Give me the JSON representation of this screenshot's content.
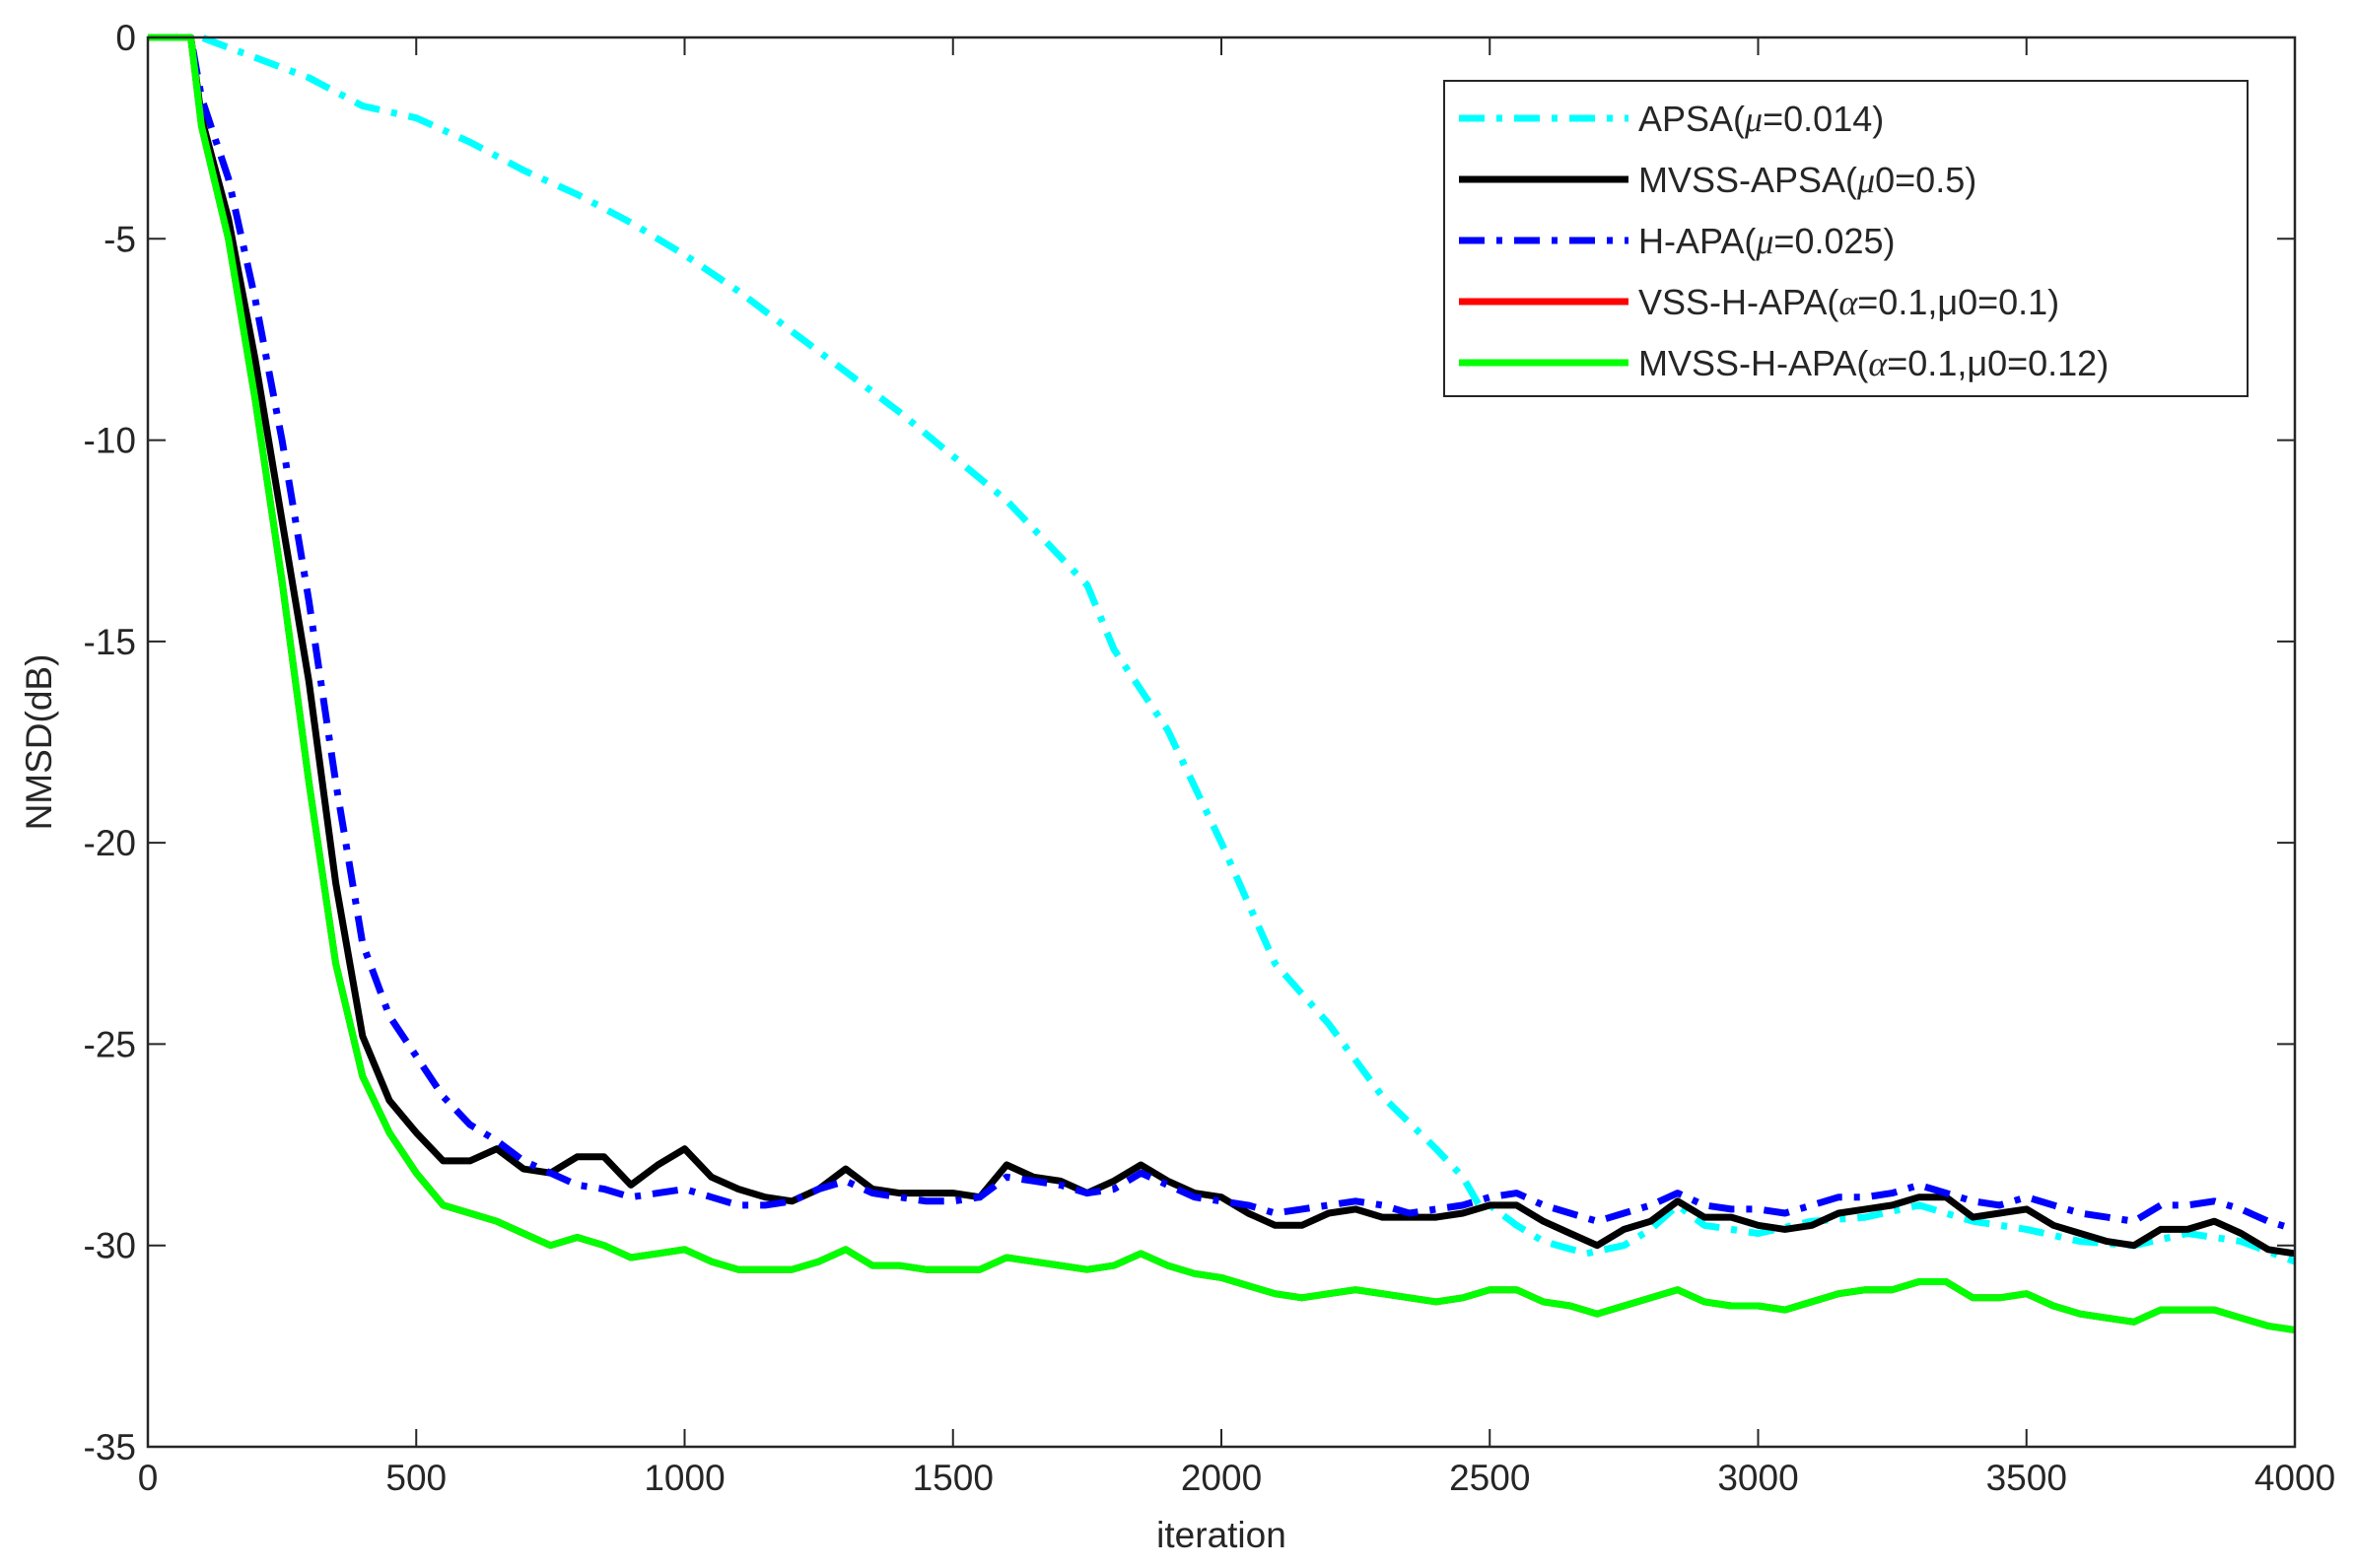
{
  "chart_data": {
    "type": "line",
    "title": "",
    "xlabel": "iteration",
    "ylabel": "NMSD(dB)",
    "xlim": [
      0,
      4000
    ],
    "ylim": [
      -35,
      0
    ],
    "xticks": [
      0,
      500,
      1000,
      1500,
      2000,
      2500,
      3000,
      3500,
      4000
    ],
    "yticks": [
      0,
      -5,
      -10,
      -15,
      -20,
      -25,
      -30,
      -35
    ],
    "xtick_labels": [
      "0",
      "500",
      "1000",
      "1500",
      "2000",
      "2500",
      "3000",
      "3500",
      "4000"
    ],
    "ytick_labels": [
      "0",
      "-5",
      "-10",
      "-15",
      "-20",
      "-25",
      "-30",
      "-35"
    ],
    "grid": false,
    "legend_position": "top-right",
    "series": [
      {
        "name": "APSA(μ=0.014)",
        "legend_prefix": "APSA(",
        "legend_greek": "μ",
        "legend_suffix": "=0.014)",
        "color": "#00FFFF",
        "dash": "dash-dot",
        "x": [
          0,
          70,
          100,
          200,
          300,
          400,
          500,
          600,
          700,
          800,
          900,
          1000,
          1100,
          1200,
          1300,
          1400,
          1500,
          1600,
          1700,
          1750,
          1800,
          1900,
          2000,
          2100,
          2200,
          2300,
          2400,
          2450,
          2480,
          2500,
          2550,
          2600,
          2680,
          2750,
          2800,
          2850,
          2900,
          3000,
          3100,
          3200,
          3300,
          3400,
          3500,
          3600,
          3700,
          3800,
          3900,
          4000
        ],
        "y": [
          0,
          0,
          0,
          -0.5,
          -1.0,
          -1.7,
          -2.0,
          -2.6,
          -3.3,
          -3.9,
          -4.6,
          -5.4,
          -6.3,
          -7.3,
          -8.3,
          -9.3,
          -10.4,
          -11.5,
          -12.9,
          -13.6,
          -15.2,
          -17.2,
          -20.0,
          -23.0,
          -24.5,
          -26.3,
          -27.6,
          -28.3,
          -29.0,
          -29.0,
          -29.5,
          -29.9,
          -30.2,
          -30.0,
          -29.6,
          -29.0,
          -29.5,
          -29.7,
          -29.4,
          -29.3,
          -29.0,
          -29.4,
          -29.6,
          -29.9,
          -30.0,
          -29.7,
          -29.9,
          -30.4
        ]
      },
      {
        "name": "MVSS-APSA(μ0=0.5)",
        "legend_prefix": "MVSS-APSA(",
        "legend_greek": "μ",
        "legend_suffix": "0=0.5)",
        "color": "#000000",
        "dash": "solid",
        "x": [
          0,
          70,
          80,
          100,
          150,
          200,
          250,
          300,
          350,
          400,
          450,
          500,
          550,
          600,
          650,
          700,
          750,
          800,
          850,
          900,
          950,
          1000,
          1050,
          1100,
          1150,
          1200,
          1250,
          1300,
          1350,
          1400,
          1450,
          1500,
          1550,
          1600,
          1650,
          1700,
          1750,
          1800,
          1850,
          1900,
          1950,
          2000,
          2050,
          2100,
          2150,
          2200,
          2250,
          2300,
          2350,
          2400,
          2450,
          2500,
          2550,
          2600,
          2650,
          2700,
          2750,
          2800,
          2850,
          2900,
          2950,
          3000,
          3050,
          3100,
          3150,
          3200,
          3250,
          3300,
          3350,
          3400,
          3450,
          3500,
          3550,
          3600,
          3650,
          3700,
          3750,
          3800,
          3850,
          3900,
          3950,
          4000
        ],
        "y": [
          0,
          0,
          0,
          -2.0,
          -4.5,
          -8.0,
          -12.0,
          -16.0,
          -21.0,
          -24.8,
          -26.4,
          -27.2,
          -27.9,
          -27.9,
          -27.6,
          -28.1,
          -28.2,
          -27.8,
          -27.8,
          -28.5,
          -28.0,
          -27.6,
          -28.3,
          -28.6,
          -28.8,
          -28.9,
          -28.6,
          -28.1,
          -28.6,
          -28.7,
          -28.7,
          -28.7,
          -28.8,
          -28.0,
          -28.3,
          -28.4,
          -28.7,
          -28.4,
          -28.0,
          -28.4,
          -28.7,
          -28.8,
          -29.2,
          -29.5,
          -29.5,
          -29.2,
          -29.1,
          -29.3,
          -29.3,
          -29.3,
          -29.2,
          -29.0,
          -29.0,
          -29.4,
          -29.7,
          -30.0,
          -29.6,
          -29.4,
          -28.9,
          -29.3,
          -29.3,
          -29.5,
          -29.6,
          -29.5,
          -29.2,
          -29.1,
          -29.0,
          -28.8,
          -28.8,
          -29.3,
          -29.2,
          -29.1,
          -29.5,
          -29.7,
          -29.9,
          -30.0,
          -29.6,
          -29.6,
          -29.4,
          -29.7,
          -30.1,
          -30.2
        ]
      },
      {
        "name": "H-APA(μ=0.025)",
        "legend_prefix": "H-APA(",
        "legend_greek": "μ",
        "legend_suffix": "=0.025)",
        "color": "#0000FF",
        "dash": "dash-dot",
        "x": [
          0,
          70,
          80,
          100,
          150,
          200,
          250,
          300,
          350,
          400,
          450,
          500,
          550,
          600,
          650,
          700,
          750,
          800,
          850,
          900,
          950,
          1000,
          1050,
          1100,
          1150,
          1200,
          1250,
          1300,
          1350,
          1400,
          1450,
          1500,
          1550,
          1600,
          1650,
          1700,
          1750,
          1800,
          1850,
          1900,
          1950,
          2000,
          2050,
          2100,
          2150,
          2200,
          2250,
          2300,
          2350,
          2400,
          2450,
          2500,
          2550,
          2600,
          2650,
          2700,
          2750,
          2800,
          2850,
          2900,
          2950,
          3000,
          3050,
          3100,
          3150,
          3200,
          3250,
          3300,
          3350,
          3400,
          3450,
          3500,
          3550,
          3600,
          3650,
          3700,
          3750,
          3800,
          3850,
          3900,
          3950,
          4000
        ],
        "y": [
          0,
          0,
          0,
          -1.5,
          -3.5,
          -6.5,
          -10.0,
          -14.0,
          -18.5,
          -22.5,
          -24.3,
          -25.3,
          -26.3,
          -27.0,
          -27.4,
          -27.9,
          -28.2,
          -28.5,
          -28.6,
          -28.8,
          -28.7,
          -28.6,
          -28.8,
          -29.0,
          -29.0,
          -28.9,
          -28.6,
          -28.4,
          -28.7,
          -28.8,
          -28.9,
          -28.9,
          -28.8,
          -28.3,
          -28.4,
          -28.5,
          -28.7,
          -28.6,
          -28.2,
          -28.5,
          -28.8,
          -28.9,
          -29.0,
          -29.2,
          -29.1,
          -29.0,
          -28.9,
          -29.0,
          -29.2,
          -29.1,
          -29.0,
          -28.8,
          -28.7,
          -29.0,
          -29.2,
          -29.4,
          -29.2,
          -29.0,
          -28.7,
          -29.0,
          -29.1,
          -29.1,
          -29.2,
          -29.0,
          -28.8,
          -28.8,
          -28.7,
          -28.5,
          -28.7,
          -28.9,
          -29.0,
          -28.8,
          -29.0,
          -29.2,
          -29.3,
          -29.4,
          -29.0,
          -29.0,
          -28.9,
          -29.1,
          -29.4,
          -29.6
        ]
      },
      {
        "name": "VSS-H-APA(α=0.1,μ0=0.1)",
        "legend_prefix": "VSS-H-APA(",
        "legend_greek": "α",
        "legend_suffix": "=0.1,μ0=0.1)",
        "color": "#FF0000",
        "dash": "solid",
        "x": [
          0,
          70,
          80,
          100,
          150,
          200,
          250,
          300,
          350,
          400,
          450,
          500,
          550,
          600,
          650,
          700,
          750,
          800,
          850,
          900,
          950,
          1000,
          1050,
          1100,
          1150,
          1200,
          1250,
          1300,
          1350,
          1400,
          1450,
          1500,
          1550,
          1600,
          1650,
          1700,
          1750,
          1800,
          1850,
          1900,
          1950,
          2000,
          2050,
          2100,
          2150,
          2200,
          2250,
          2300,
          2350,
          2400,
          2450,
          2500,
          2550,
          2600,
          2650,
          2700,
          2750,
          2800,
          2850,
          2900,
          2950,
          3000,
          3050,
          3100,
          3150,
          3200,
          3250,
          3300,
          3350,
          3400,
          3450,
          3500,
          3550,
          3600,
          3650,
          3700,
          3750,
          3800,
          3850,
          3900,
          3950,
          4000
        ],
        "y": [
          0,
          0,
          0,
          -2.2,
          -5.0,
          -9.0,
          -13.5,
          -18.5,
          -23.0,
          -25.8,
          -27.2,
          -28.2,
          -29.0,
          -29.2,
          -29.4,
          -29.7,
          -30.0,
          -29.8,
          -30.0,
          -30.3,
          -30.2,
          -30.1,
          -30.4,
          -30.6,
          -30.6,
          -30.6,
          -30.4,
          -30.1,
          -30.5,
          -30.5,
          -30.6,
          -30.6,
          -30.6,
          -30.3,
          -30.4,
          -30.5,
          -30.6,
          -30.5,
          -30.2,
          -30.5,
          -30.7,
          -30.8,
          -31.0,
          -31.2,
          -31.3,
          -31.2,
          -31.1,
          -31.2,
          -31.3,
          -31.4,
          -31.3,
          -31.1,
          -31.1,
          -31.4,
          -31.5,
          -31.7,
          -31.5,
          -31.3,
          -31.1,
          -31.4,
          -31.5,
          -31.5,
          -31.6,
          -31.4,
          -31.2,
          -31.1,
          -31.1,
          -30.9,
          -30.9,
          -31.3,
          -31.3,
          -31.2,
          -31.5,
          -31.7,
          -31.8,
          -31.9,
          -31.6,
          -31.6,
          -31.6,
          -31.8,
          -32.0,
          -32.1
        ]
      },
      {
        "name": "MVSS-H-APA(α=0.1,μ0=0.12)",
        "legend_prefix": "MVSS-H-APA(",
        "legend_greek": "α",
        "legend_suffix": "=0.1,μ0=0.12)",
        "color": "#00FF00",
        "dash": "solid",
        "x": [
          0,
          70,
          80,
          100,
          150,
          200,
          250,
          300,
          350,
          400,
          450,
          500,
          550,
          600,
          650,
          700,
          750,
          800,
          850,
          900,
          950,
          1000,
          1050,
          1100,
          1150,
          1200,
          1250,
          1300,
          1350,
          1400,
          1450,
          1500,
          1550,
          1600,
          1650,
          1700,
          1750,
          1800,
          1850,
          1900,
          1950,
          2000,
          2050,
          2100,
          2150,
          2200,
          2250,
          2300,
          2350,
          2400,
          2450,
          2500,
          2550,
          2600,
          2650,
          2700,
          2750,
          2800,
          2850,
          2900,
          2950,
          3000,
          3050,
          3100,
          3150,
          3200,
          3250,
          3300,
          3350,
          3400,
          3450,
          3500,
          3550,
          3600,
          3650,
          3700,
          3750,
          3800,
          3850,
          3900,
          3950,
          4000
        ],
        "y": [
          0,
          0,
          0,
          -2.2,
          -5.0,
          -9.0,
          -13.5,
          -18.5,
          -23.0,
          -25.8,
          -27.2,
          -28.2,
          -29.0,
          -29.2,
          -29.4,
          -29.7,
          -30.0,
          -29.8,
          -30.0,
          -30.3,
          -30.2,
          -30.1,
          -30.4,
          -30.6,
          -30.6,
          -30.6,
          -30.4,
          -30.1,
          -30.5,
          -30.5,
          -30.6,
          -30.6,
          -30.6,
          -30.3,
          -30.4,
          -30.5,
          -30.6,
          -30.5,
          -30.2,
          -30.5,
          -30.7,
          -30.8,
          -31.0,
          -31.2,
          -31.3,
          -31.2,
          -31.1,
          -31.2,
          -31.3,
          -31.4,
          -31.3,
          -31.1,
          -31.1,
          -31.4,
          -31.5,
          -31.7,
          -31.5,
          -31.3,
          -31.1,
          -31.4,
          -31.5,
          -31.5,
          -31.6,
          -31.4,
          -31.2,
          -31.1,
          -31.1,
          -30.9,
          -30.9,
          -31.3,
          -31.3,
          -31.2,
          -31.5,
          -31.7,
          -31.8,
          -31.9,
          -31.6,
          -31.6,
          -31.6,
          -31.8,
          -32.0,
          -32.1
        ]
      }
    ]
  }
}
